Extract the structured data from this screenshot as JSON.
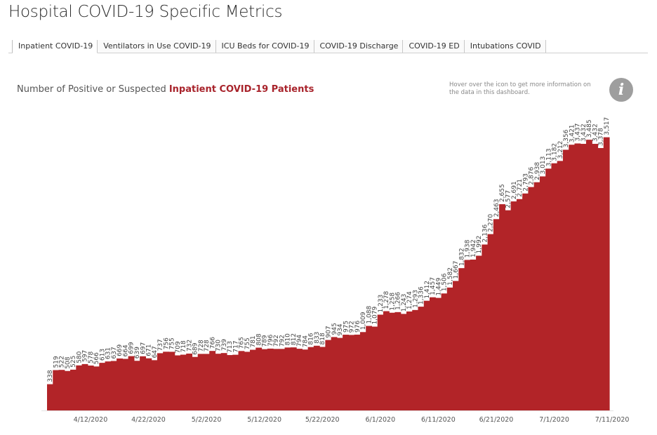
{
  "header": {
    "title": "Hospital COVID-19 Specific Metrics"
  },
  "tabs": [
    {
      "label": "Inpatient COVID-19",
      "active": true
    },
    {
      "label": "Ventilators in Use COVID-19",
      "active": false
    },
    {
      "label": "ICU Beds for COVID-19",
      "active": false
    },
    {
      "label": "COVID-19 Discharge",
      "active": false
    },
    {
      "label": "COVID-19 ED",
      "active": false
    },
    {
      "label": "Intubations COVID",
      "active": false
    }
  ],
  "chart_heading": {
    "prefix": "Number of Positive or Suspected ",
    "highlight": "Inpatient COVID-19 Patients"
  },
  "info": {
    "note": "Hover over the icon to get more information on the data in this dashboard.",
    "icon": "info-icon",
    "glyph": "i"
  },
  "colors": {
    "bar": "#b22428",
    "highlight": "#a8232b",
    "info_icon": "#9e9e9e"
  },
  "chart_data": {
    "type": "area",
    "start_date": "2020-04-05",
    "values": [
      338,
      519,
      522,
      508,
      525,
      580,
      597,
      578,
      566,
      613,
      631,
      637,
      669,
      664,
      699,
      639,
      697,
      671,
      647,
      737,
      756,
      755,
      709,
      718,
      732,
      689,
      728,
      728,
      766,
      730,
      739,
      713,
      717,
      765,
      755,
      781,
      808,
      789,
      796,
      792,
      792,
      810,
      812,
      794,
      784,
      816,
      833,
      818,
      907,
      945,
      934,
      975,
      972,
      976,
      1009,
      1088,
      1079,
      1233,
      1278,
      1258,
      1266,
      1243,
      1274,
      1293,
      1336,
      1412,
      1457,
      1449,
      1506,
      1582,
      1667,
      1832,
      1938,
      1942,
      1992,
      2136,
      2270,
      2463,
      2655,
      2577,
      2691,
      2721,
      2793,
      2876,
      2938,
      3013,
      3113,
      3182,
      3212,
      3356,
      3421,
      3437,
      3432,
      3485,
      3432,
      3378,
      3517
    ],
    "value_labels": [
      "338",
      "519",
      "522",
      "508",
      "525",
      "580",
      "597",
      "578",
      "566",
      "613",
      "631",
      "637",
      "669",
      "664",
      "699",
      "639",
      "697",
      "671",
      "647",
      "737",
      "756",
      "755",
      "709",
      "718",
      "732",
      "689",
      "728",
      "728",
      "766",
      "730",
      "739",
      "713",
      "717",
      "765",
      "755",
      "781",
      "808",
      "789",
      "796",
      "792",
      "792",
      "810",
      "812",
      "794",
      "784",
      "816",
      "833",
      "818",
      "907",
      "945",
      "934",
      "975",
      "972",
      "976",
      "1,009",
      "1,088",
      "1,079",
      "1,233",
      "1,278",
      "1,258",
      "1,266",
      "1,243",
      "1,274",
      "1,293",
      "1,336",
      "1,412",
      "1,457",
      "1,449",
      "1,506",
      "1,582",
      "1,667",
      "1,832",
      "1,938",
      "1,942",
      "1,992",
      "2,136",
      "2,270",
      "2,463",
      "2,655",
      "2,577",
      "2,691",
      "2,721",
      "2,793",
      "2,876",
      "2,938",
      "3,013",
      "3,113",
      "3,182",
      "3,212",
      "3,356",
      "3,421",
      "3,437",
      "3,432",
      "3,485",
      "3,432",
      "3,378",
      "3,517"
    ],
    "x_ticks": [
      {
        "label": "4/12/2020",
        "index": 7
      },
      {
        "label": "4/22/2020",
        "index": 17
      },
      {
        "label": "5/2/2020",
        "index": 27
      },
      {
        "label": "5/12/2020",
        "index": 37
      },
      {
        "label": "5/22/2020",
        "index": 47
      },
      {
        "label": "6/1/2020",
        "index": 57
      },
      {
        "label": "6/11/2020",
        "index": 67
      },
      {
        "label": "6/21/2020",
        "index": 77
      },
      {
        "label": "7/1/2020",
        "index": 87
      },
      {
        "label": "7/11/2020",
        "index": 97
      }
    ],
    "ylim": [
      0,
      4200
    ],
    "grid": false,
    "xlabel": "",
    "ylabel": "",
    "title": ""
  }
}
